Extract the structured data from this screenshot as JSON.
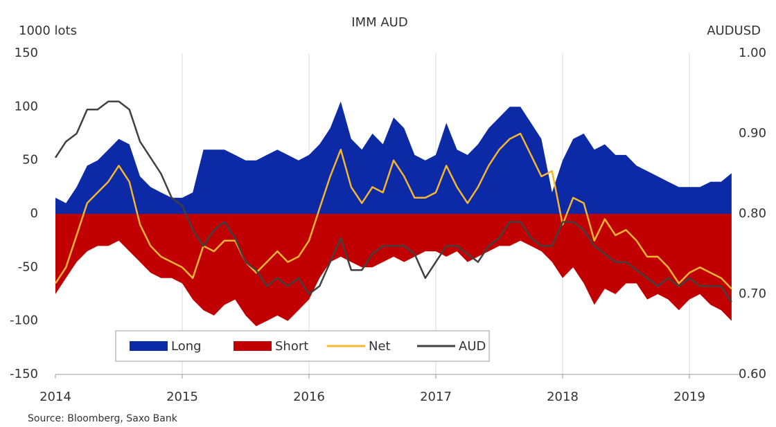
{
  "chart_data": {
    "type": "line",
    "title": "IMM AUD",
    "ylabel": "1000 lots",
    "y2label": "AUDUSD",
    "source": "Source: Bloomberg,  Saxo Bank",
    "x": [
      2014,
      2014.083,
      2014.167,
      2014.25,
      2014.333,
      2014.417,
      2014.5,
      2014.583,
      2014.667,
      2014.75,
      2014.833,
      2014.917,
      2015,
      2015.083,
      2015.167,
      2015.25,
      2015.333,
      2015.417,
      2015.5,
      2015.583,
      2015.667,
      2015.75,
      2015.833,
      2015.917,
      2016,
      2016.083,
      2016.167,
      2016.25,
      2016.333,
      2016.417,
      2016.5,
      2016.583,
      2016.667,
      2016.75,
      2016.833,
      2016.917,
      2017,
      2017.083,
      2017.167,
      2017.25,
      2017.333,
      2017.417,
      2017.5,
      2017.583,
      2017.667,
      2017.75,
      2017.833,
      2017.917,
      2018,
      2018.083,
      2018.167,
      2018.25,
      2018.333,
      2018.417,
      2018.5,
      2018.583,
      2018.667,
      2018.75,
      2018.833,
      2018.917,
      2019,
      2019.083,
      2019.167,
      2019.25,
      2019.333
    ],
    "series": [
      {
        "name": "Long",
        "kind": "area",
        "color": "#0c2aa6",
        "values": [
          15,
          10,
          25,
          45,
          50,
          60,
          70,
          65,
          35,
          25,
          20,
          15,
          15,
          20,
          60,
          60,
          60,
          55,
          50,
          50,
          55,
          60,
          55,
          50,
          55,
          65,
          80,
          105,
          70,
          60,
          75,
          65,
          90,
          80,
          55,
          50,
          55,
          85,
          60,
          55,
          65,
          80,
          90,
          100,
          100,
          85,
          70,
          20,
          50,
          70,
          75,
          60,
          65,
          55,
          55,
          45,
          40,
          35,
          30,
          25,
          25,
          25,
          30,
          30,
          38
        ]
      },
      {
        "name": "Short",
        "kind": "area",
        "color": "#c00000",
        "values": [
          -75,
          -60,
          -45,
          -35,
          -30,
          -30,
          -25,
          -35,
          -45,
          -55,
          -60,
          -60,
          -65,
          -80,
          -90,
          -95,
          -85,
          -80,
          -95,
          -105,
          -100,
          -95,
          -100,
          -90,
          -80,
          -60,
          -45,
          -40,
          -45,
          -50,
          -50,
          -45,
          -40,
          -45,
          -40,
          -35,
          -35,
          -40,
          -35,
          -45,
          -40,
          -35,
          -30,
          -30,
          -25,
          -30,
          -35,
          -45,
          -60,
          -50,
          -65,
          -85,
          -70,
          -75,
          -65,
          -65,
          -80,
          -75,
          -80,
          -90,
          -80,
          -75,
          -85,
          -90,
          -100
        ]
      },
      {
        "name": "Net",
        "kind": "line",
        "color": "#f5b730",
        "values": [
          -65,
          -50,
          -20,
          10,
          20,
          30,
          45,
          30,
          -10,
          -30,
          -40,
          -45,
          -50,
          -60,
          -30,
          -35,
          -25,
          -25,
          -45,
          -55,
          -45,
          -35,
          -45,
          -40,
          -25,
          5,
          35,
          60,
          25,
          10,
          25,
          20,
          50,
          35,
          15,
          15,
          20,
          45,
          25,
          10,
          25,
          45,
          60,
          70,
          75,
          55,
          35,
          40,
          -10,
          15,
          10,
          -25,
          -5,
          -20,
          -15,
          -25,
          -40,
          -40,
          -50,
          -65,
          -55,
          -50,
          -55,
          -60,
          -70
        ]
      },
      {
        "name": "AUD",
        "kind": "line",
        "axis": "y2",
        "color": "#404040",
        "values": [
          0.87,
          0.89,
          0.9,
          0.93,
          0.93,
          0.94,
          0.94,
          0.93,
          0.89,
          0.87,
          0.85,
          0.82,
          0.81,
          0.78,
          0.76,
          0.78,
          0.79,
          0.77,
          0.74,
          0.73,
          0.71,
          0.72,
          0.71,
          0.72,
          0.7,
          0.71,
          0.74,
          0.77,
          0.73,
          0.73,
          0.75,
          0.76,
          0.76,
          0.76,
          0.75,
          0.72,
          0.74,
          0.76,
          0.76,
          0.75,
          0.74,
          0.76,
          0.77,
          0.79,
          0.79,
          0.77,
          0.76,
          0.76,
          0.79,
          0.79,
          0.78,
          0.76,
          0.75,
          0.74,
          0.74,
          0.73,
          0.72,
          0.71,
          0.72,
          0.71,
          0.72,
          0.71,
          0.71,
          0.71,
          0.69
        ]
      }
    ],
    "xlim": [
      2014,
      2019.4
    ],
    "xticks": [
      2014,
      2015,
      2016,
      2017,
      2018,
      2019
    ],
    "ylim": [
      -150,
      150
    ],
    "yticks": [
      150,
      100,
      50,
      0,
      -50,
      -100,
      -150
    ],
    "y2lim": [
      0.6,
      1.0
    ],
    "y2ticks": [
      {
        "value": 1.0,
        "label": "1.00"
      },
      {
        "value": 0.9,
        "label": "0.90"
      },
      {
        "value": 0.8,
        "label": "0.80"
      },
      {
        "value": 0.7,
        "label": "0.70"
      },
      {
        "value": 0.6,
        "label": "0.60"
      }
    ],
    "grid": "x",
    "legend": "lower left"
  }
}
